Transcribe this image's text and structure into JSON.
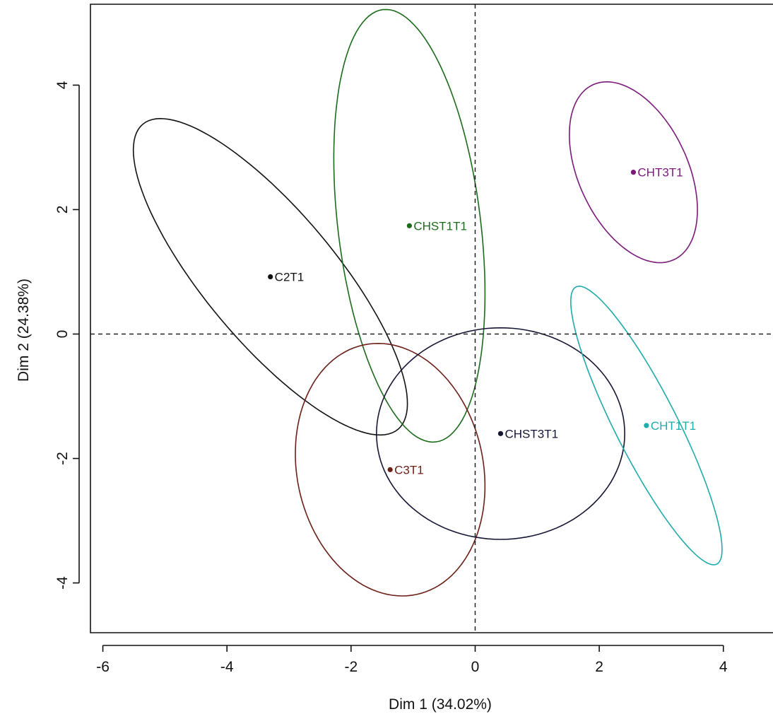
{
  "chart_data": {
    "type": "scatter",
    "title": "",
    "xlabel": "Dim 1 (34.02%)",
    "ylabel": "Dim 2 (24.38%)",
    "xlim": [
      -6.2,
      4.8
    ],
    "ylim": [
      -4.8,
      5.3
    ],
    "x_ticks": [
      -6,
      -4,
      -2,
      0,
      2,
      4
    ],
    "y_ticks": [
      -4,
      -2,
      0,
      2,
      4
    ],
    "grid": false,
    "reference_lines": {
      "x": 0,
      "y": 0,
      "style": "dashed"
    },
    "points": [
      {
        "label": "C2T1",
        "x": -3.3,
        "y": 0.92,
        "color": "#111111"
      },
      {
        "label": "CHST1T1",
        "x": -1.06,
        "y": 1.74,
        "color": "#1b6b1b"
      },
      {
        "label": "CHT3T1",
        "x": 2.55,
        "y": 2.6,
        "color": "#7a1a7a"
      },
      {
        "label": "C3T1",
        "x": -1.37,
        "y": -2.18,
        "color": "#6b1f17"
      },
      {
        "label": "CHST3T1",
        "x": 0.41,
        "y": -1.6,
        "color": "#151535"
      },
      {
        "label": "CHT1T1",
        "x": 2.76,
        "y": -1.47,
        "color": "#20aaaa"
      }
    ],
    "ellipses": [
      {
        "group": "C2T1",
        "cx": -3.3,
        "cy": 0.92,
        "rx": 3.2,
        "ry": 1.05,
        "angle_deg": -50,
        "color": "#111111"
      },
      {
        "group": "CHST1T1",
        "cx": -1.06,
        "cy": 1.74,
        "rx": 3.5,
        "ry": 1.15,
        "angle_deg": -83,
        "color": "#1b6b1b"
      },
      {
        "group": "CHT3T1",
        "cx": 2.55,
        "cy": 2.6,
        "rx": 1.55,
        "ry": 0.88,
        "angle_deg": -65,
        "color": "#7a1a7a"
      },
      {
        "group": "C3T1",
        "cx": -1.37,
        "cy": -2.18,
        "rx": 2.05,
        "ry": 1.5,
        "angle_deg": -78,
        "color": "#6b1f17"
      },
      {
        "group": "CHST3T1",
        "cx": 0.41,
        "cy": -1.6,
        "rx": 2.0,
        "ry": 1.7,
        "angle_deg": 0,
        "color": "#151535"
      },
      {
        "group": "CHT1T1",
        "cx": 2.76,
        "cy": -1.47,
        "rx": 2.5,
        "ry": 0.5,
        "angle_deg": -63,
        "color": "#20aaaa"
      }
    ]
  }
}
